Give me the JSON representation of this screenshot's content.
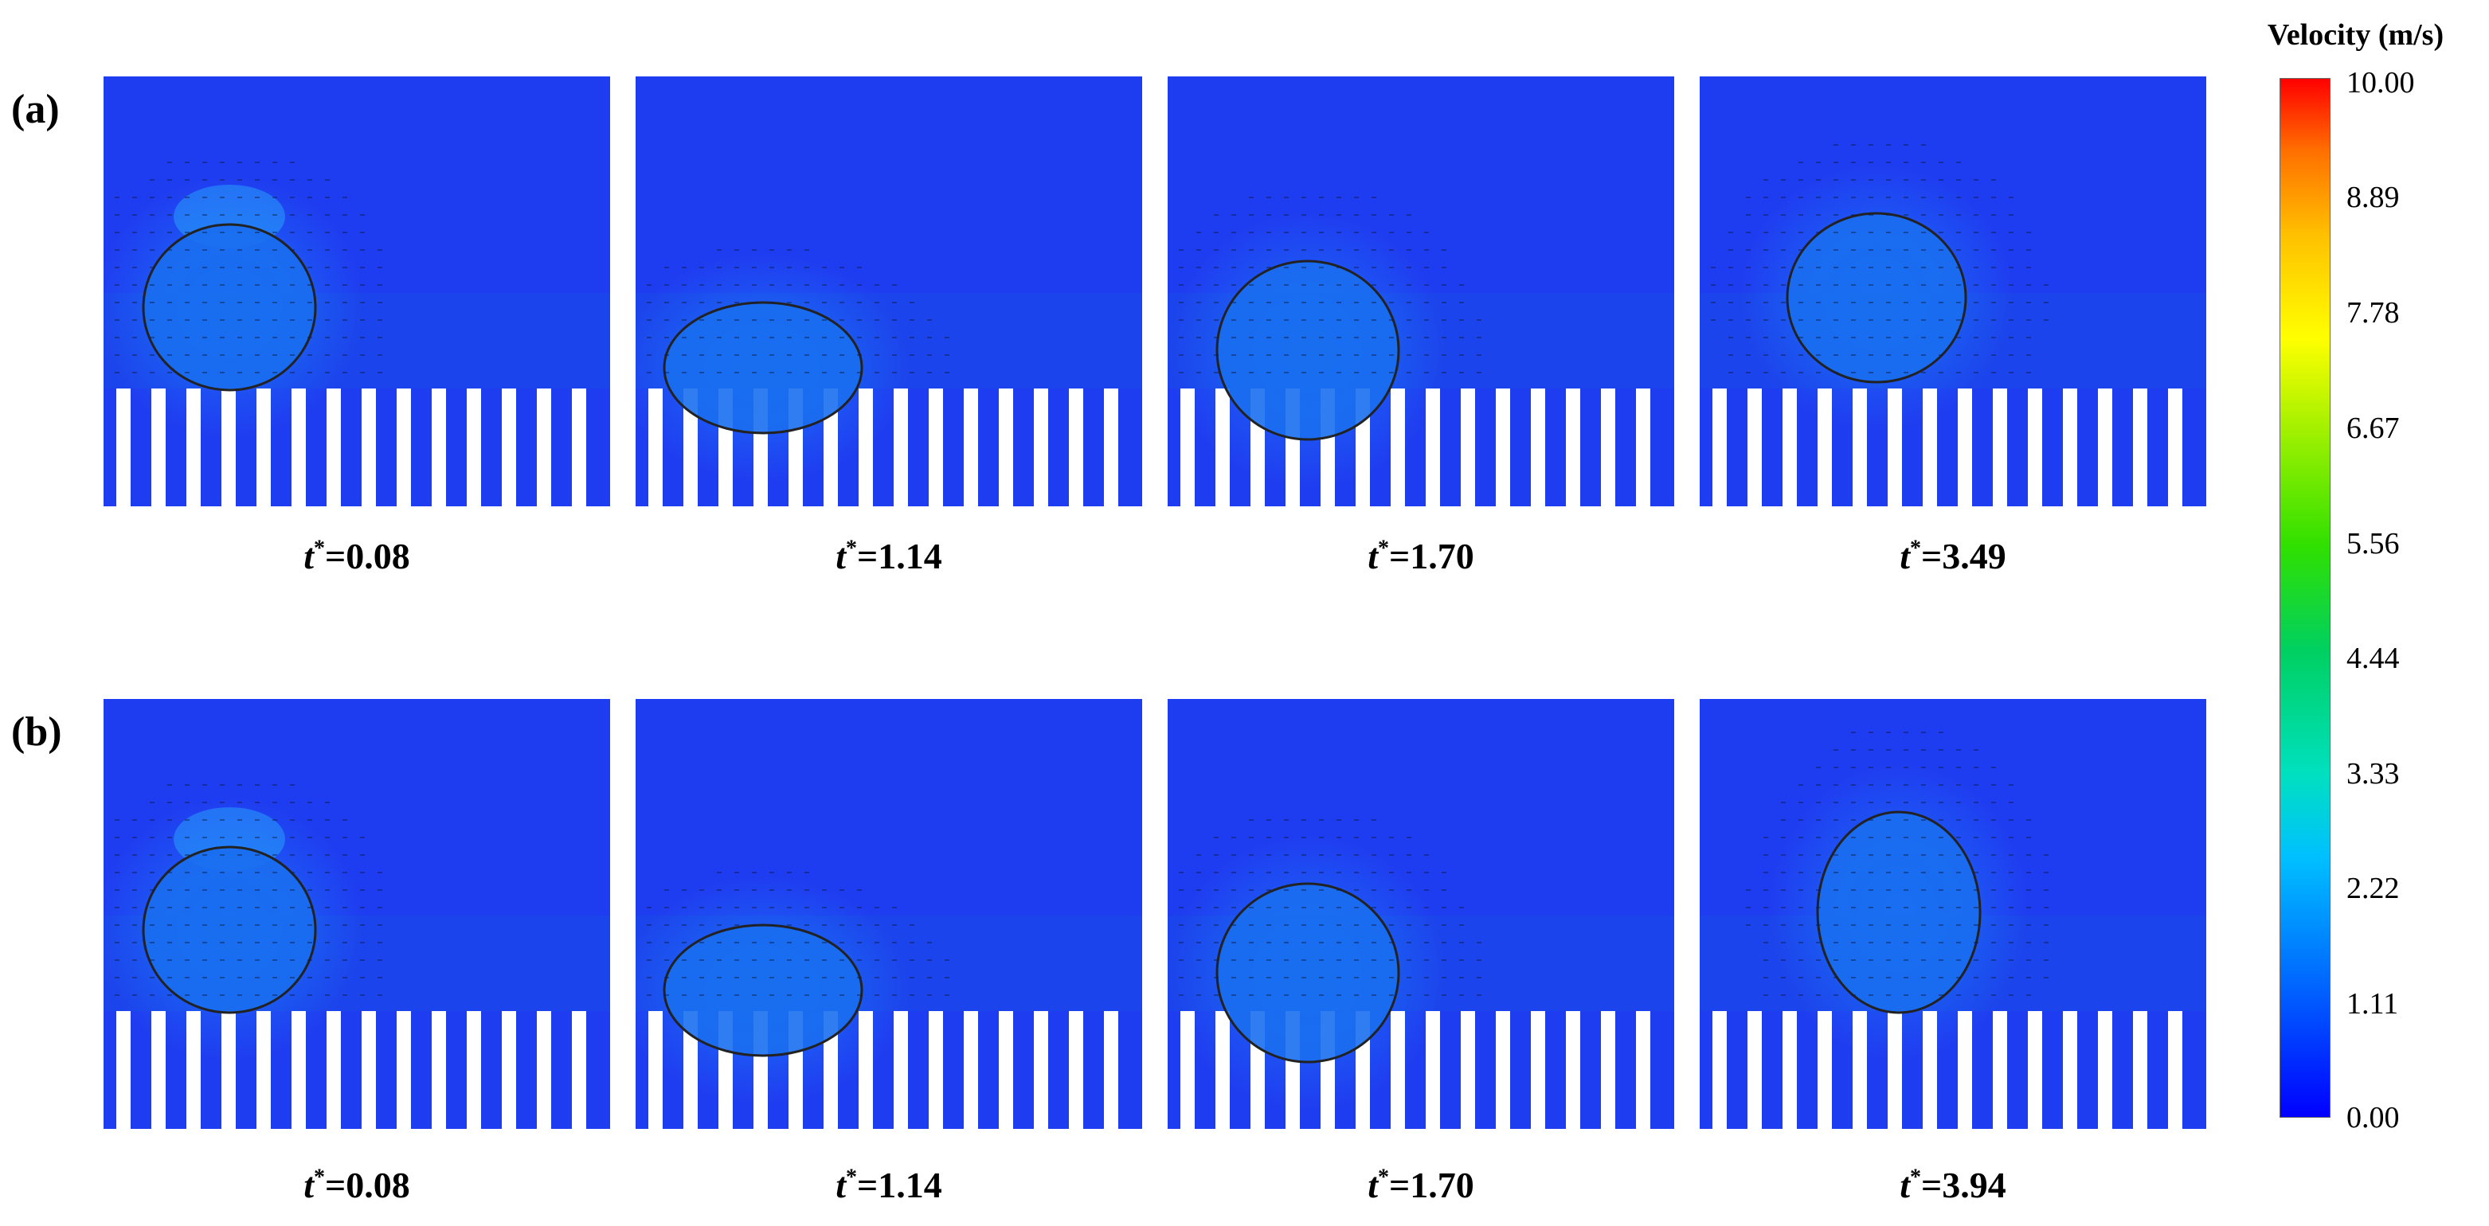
{
  "rows": [
    {
      "label": "(a)",
      "panels": [
        {
          "t_value": "=0.08",
          "state": "initial"
        },
        {
          "t_value": "=1.14",
          "state": "spreading"
        },
        {
          "t_value": "=1.70",
          "state": "recoiling"
        },
        {
          "t_value": "=3.49",
          "state": "rebound"
        }
      ]
    },
    {
      "label": "(b)",
      "panels": [
        {
          "t_value": "=0.08",
          "state": "initial"
        },
        {
          "t_value": "=1.14",
          "state": "spreading"
        },
        {
          "t_value": "=1.70",
          "state": "recoiling"
        },
        {
          "t_value": "=3.94",
          "state": "rebound-tall"
        }
      ]
    }
  ],
  "time_symbol": "t",
  "time_superscript": "*",
  "colorbar": {
    "title": "Velocity (m/s)",
    "ticks": [
      "10.00",
      "8.89",
      "7.78",
      "6.67",
      "5.56",
      "4.44",
      "3.33",
      "2.22",
      "1.11",
      "0.00"
    ],
    "colors": {
      "min": "#0000ff",
      "mid_low": "#00c0ff",
      "mid": "#00d060",
      "mid_high": "#ffff00",
      "max": "#ff0000"
    }
  },
  "colors": {
    "field_background": "#1f3df0",
    "field_lower": "#1a4ce8",
    "droplet_outline": "#222222",
    "pillar_gap": "#ffffff"
  }
}
